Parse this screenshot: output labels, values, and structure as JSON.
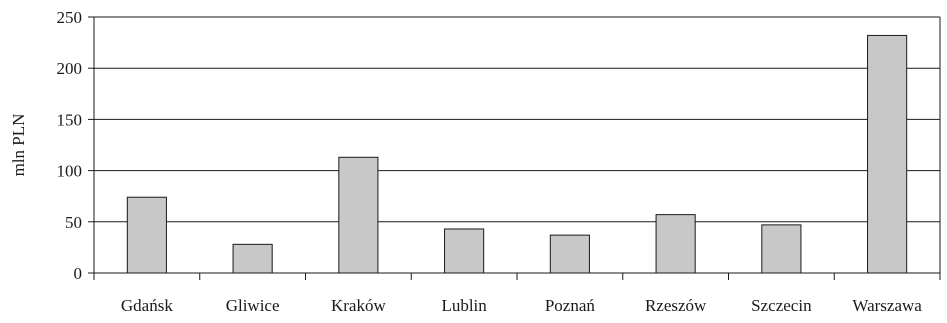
{
  "chart_data": {
    "type": "bar",
    "title": "",
    "xlabel": "",
    "ylabel": "mln PLN",
    "categories": [
      "Gdańsk",
      "Gliwice",
      "Kraków",
      "Lublin",
      "Poznań",
      "Rzeszów",
      "Szczecin",
      "Warszawa"
    ],
    "values": [
      74,
      28,
      113,
      43,
      37,
      57,
      47,
      232
    ],
    "ylim": [
      0,
      250
    ],
    "yticks": [
      0,
      50,
      100,
      150,
      200,
      250
    ],
    "grid": true,
    "legend": "none",
    "colors": {
      "bar_fill": "#c8c8c8",
      "bar_stroke": "#1a1a1a",
      "grid": "#1a1a1a"
    }
  }
}
